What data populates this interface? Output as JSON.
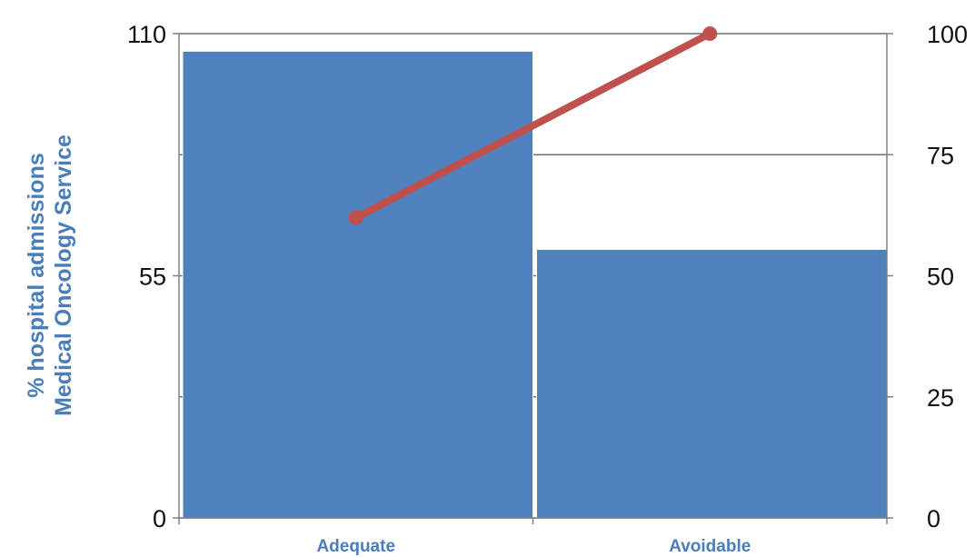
{
  "chart_data": {
    "type": "bar",
    "categories": [
      "Adequate",
      "Avoidable"
    ],
    "series": [
      {
        "type": "bar",
        "axis": "left",
        "values": [
          106,
          61
        ]
      },
      {
        "type": "line",
        "axis": "right",
        "values": [
          62,
          100
        ]
      }
    ],
    "ylabel": [
      "% hospital admissions",
      "Medical Oncology Service"
    ],
    "ylim": [
      0,
      110
    ],
    "yticks": [
      "0",
      "55",
      "110"
    ],
    "y2lim": [
      0,
      100
    ],
    "y2ticks": [
      "0",
      "25",
      "50",
      "75",
      "100"
    ],
    "grid": true,
    "legend": "none",
    "colors": {
      "bar": "#4f81bd",
      "line": "#c0504d",
      "label": "#4a7ebb",
      "axis": "#808080"
    }
  }
}
